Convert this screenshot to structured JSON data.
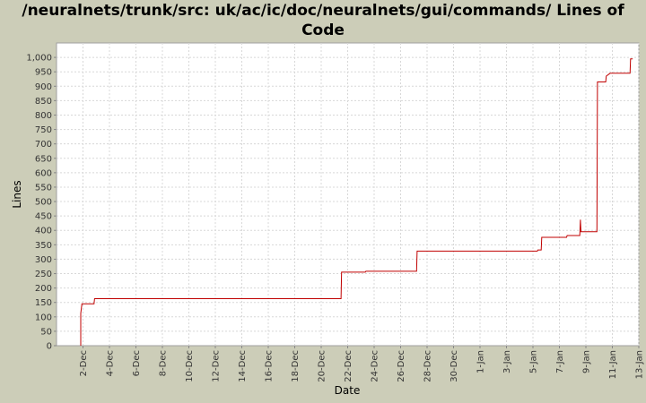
{
  "chart_data": {
    "type": "line",
    "title": "/neuralnets/trunk/src: uk/ac/ic/doc/neuralnets/gui/commands/ Lines of Code",
    "xlabel": "Date",
    "ylabel": "Lines",
    "ylim": [
      0,
      1050
    ],
    "xlim": [
      "2008-11-30",
      "2009-01-13"
    ],
    "grid": true,
    "step": true,
    "colors": {
      "line": "#c00000",
      "background": "#ffffff",
      "grid": "#d8d8d8",
      "page": "#cccdb8"
    },
    "x_tick_labels": [
      "2-Dec",
      "4-Dec",
      "6-Dec",
      "8-Dec",
      "10-Dec",
      "12-Dec",
      "14-Dec",
      "16-Dec",
      "18-Dec",
      "20-Dec",
      "22-Dec",
      "24-Dec",
      "26-Dec",
      "28-Dec",
      "30-Dec",
      "1-Jan",
      "3-Jan",
      "5-Jan",
      "7-Jan",
      "9-Jan",
      "11-Jan",
      "13-Jan"
    ],
    "x_tick_dates": [
      "2008-12-02",
      "2008-12-04",
      "2008-12-06",
      "2008-12-08",
      "2008-12-10",
      "2008-12-12",
      "2008-12-14",
      "2008-12-16",
      "2008-12-18",
      "2008-12-20",
      "2008-12-22",
      "2008-12-24",
      "2008-12-26",
      "2008-12-28",
      "2008-12-30",
      "2009-01-01",
      "2009-01-03",
      "2009-01-05",
      "2009-01-07",
      "2009-01-09",
      "2009-01-11",
      "2009-01-13"
    ],
    "y_tick_labels": [
      "0",
      "50",
      "100",
      "150",
      "200",
      "250",
      "300",
      "350",
      "400",
      "450",
      "500",
      "550",
      "600",
      "650",
      "700",
      "750",
      "800",
      "850",
      "900",
      "950",
      "1,000"
    ],
    "y_tick_values": [
      0,
      50,
      100,
      150,
      200,
      250,
      300,
      350,
      400,
      450,
      500,
      550,
      600,
      650,
      700,
      750,
      800,
      850,
      900,
      950,
      1000
    ],
    "series": [
      {
        "points": [
          [
            "2008-12-01 20:00",
            0
          ],
          [
            "2008-12-01 20:00",
            112
          ],
          [
            "2008-12-01 22:00",
            145
          ],
          [
            "2008-12-02 20:00",
            145
          ],
          [
            "2008-12-02 21:00",
            163
          ],
          [
            "2008-12-21 12:00",
            163
          ],
          [
            "2008-12-21 13:00",
            255
          ],
          [
            "2008-12-23 08:00",
            255
          ],
          [
            "2008-12-23 09:00",
            258
          ],
          [
            "2008-12-27 05:00",
            258
          ],
          [
            "2008-12-27 06:00",
            328
          ],
          [
            "2009-01-05 08:00",
            328
          ],
          [
            "2009-01-05 09:00",
            332
          ],
          [
            "2009-01-05 15:00",
            332
          ],
          [
            "2009-01-05 16:00",
            376
          ],
          [
            "2009-01-07 13:00",
            376
          ],
          [
            "2009-01-07 14:00",
            382
          ],
          [
            "2009-01-08 13:00",
            382
          ],
          [
            "2009-01-08 14:00",
            437
          ],
          [
            "2009-01-08 15:00",
            395
          ],
          [
            "2009-01-09 20:00",
            395
          ],
          [
            "2009-01-09 21:00",
            915
          ],
          [
            "2009-01-10 12:00",
            915
          ],
          [
            "2009-01-10 13:00",
            935
          ],
          [
            "2009-01-10 20:00",
            945
          ],
          [
            "2009-01-12 08:00",
            945
          ],
          [
            "2009-01-12 09:00",
            995
          ],
          [
            "2009-01-12 13:00",
            995
          ]
        ]
      }
    ]
  }
}
